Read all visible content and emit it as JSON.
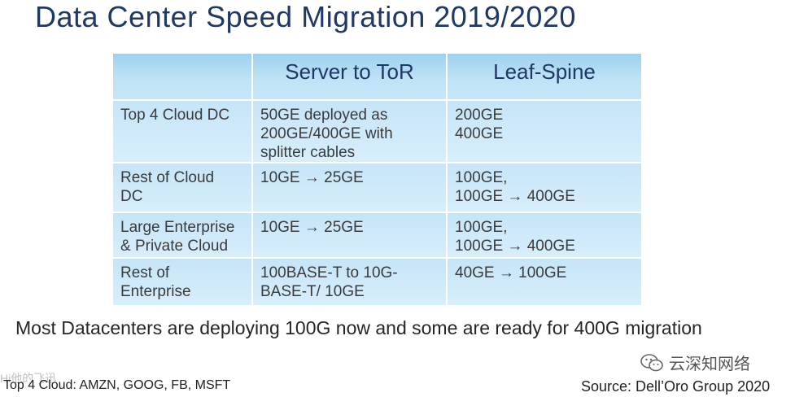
{
  "title": "Data Center Speed Migration 2019/2020",
  "table": {
    "headers": [
      "",
      "Server to ToR",
      "Leaf-Spine"
    ],
    "rows": [
      {
        "segment": "Top 4 Cloud DC",
        "server_to_tor": "50GE deployed as\n200GE/400GE with\nsplitter cables",
        "leaf_spine": "200GE\n400GE"
      },
      {
        "segment": "Rest of Cloud\nDC",
        "server_to_tor": "10GE → 25GE",
        "leaf_spine": "100GE,\n100GE → 400GE"
      },
      {
        "segment": "Large Enterprise\n& Private Cloud",
        "server_to_tor": "10GE → 25GE",
        "leaf_spine": "100GE,\n100GE → 400GE"
      },
      {
        "segment": "Rest of\nEnterprise",
        "server_to_tor": "100BASE-T to 10G-\nBASE-T/ 10GE",
        "leaf_spine": "40GE → 100GE"
      }
    ]
  },
  "summary": "Most Datacenters are deploying 100G now and some are ready for 400G migration",
  "footnote": "Top 4 Cloud: AMZN, GOOG, FB, MSFT",
  "source": "Source: Dell’Oro Group 2020",
  "watermark": {
    "icon": "wechat-icon",
    "text": "云深知网络",
    "faint_text": "Hi他的飞迅"
  },
  "colors": {
    "title": "#1f3864",
    "header_bg": "#9dd0ee",
    "cell_bg": "#cfeaf9"
  }
}
